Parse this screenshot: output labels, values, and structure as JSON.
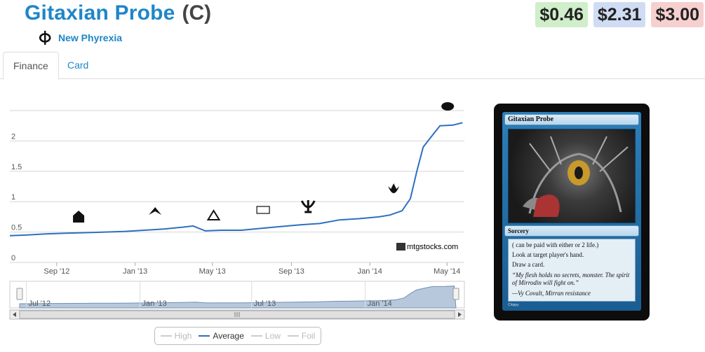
{
  "card": {
    "name": "Gitaxian Probe",
    "rarity": "(C)",
    "set_name": "New Phyrexia",
    "set_icon": "phyrexia-set-icon"
  },
  "prices": {
    "low": "$0.46",
    "avg": "$2.31",
    "high": "$3.00",
    "low_color": "#cfeec9",
    "avg_color": "#cfdcf4",
    "high_color": "#f6cfcf"
  },
  "tabs": [
    {
      "label": "Finance",
      "active": true
    },
    {
      "label": "Card",
      "active": false
    }
  ],
  "chart_data": {
    "type": "line",
    "ylim": [
      0,
      2.5
    ],
    "y_ticks": [
      "0",
      "0.5",
      "1",
      "1.5",
      "2"
    ],
    "x_ticks": [
      "Sep '12",
      "Jan '13",
      "May '13",
      "Sep '13",
      "Jan '14",
      "May '14"
    ],
    "navigator_ticks": [
      "Jul '12",
      "Jan '13",
      "Jul '13",
      "Jan '14"
    ],
    "series": [
      {
        "name": "Average",
        "color": "#2f6fbf",
        "x": [
          "2012-06-20",
          "2012-07-15",
          "2012-08-15",
          "2012-09-15",
          "2012-10-15",
          "2012-11-15",
          "2012-12-15",
          "2013-01-15",
          "2013-02-15",
          "2013-03-15",
          "2013-04-01",
          "2013-04-20",
          "2013-05-15",
          "2013-06-15",
          "2013-07-15",
          "2013-08-15",
          "2013-09-15",
          "2013-10-15",
          "2013-11-15",
          "2013-12-15",
          "2014-01-15",
          "2014-02-01",
          "2014-02-20",
          "2014-03-05",
          "2014-03-15",
          "2014-03-25",
          "2014-04-05",
          "2014-04-20",
          "2014-05-10",
          "2014-05-25"
        ],
        "values": [
          0.44,
          0.45,
          0.47,
          0.48,
          0.49,
          0.5,
          0.51,
          0.53,
          0.55,
          0.58,
          0.6,
          0.52,
          0.53,
          0.53,
          0.56,
          0.59,
          0.62,
          0.64,
          0.7,
          0.72,
          0.75,
          0.78,
          0.85,
          1.05,
          1.5,
          1.9,
          2.05,
          2.25,
          2.26,
          2.3
        ]
      }
    ],
    "set_release_markers": [
      {
        "x": "2012-10-05",
        "icon": "return-to-ravnica-icon"
      },
      {
        "x": "2013-02-01",
        "icon": "gatecrash-icon"
      },
      {
        "x": "2013-05-03",
        "icon": "dragons-maze-icon"
      },
      {
        "x": "2013-07-19",
        "icon": "m14-icon"
      },
      {
        "x": "2013-09-27",
        "icon": "theros-icon"
      },
      {
        "x": "2014-02-07",
        "icon": "born-of-the-gods-icon"
      },
      {
        "x": "2014-05-02",
        "icon": "journey-into-nyx-icon"
      }
    ],
    "watermark": "mtgstocks.com",
    "legend": [
      {
        "label": "High",
        "on": false
      },
      {
        "label": "Average",
        "on": true
      },
      {
        "label": "Low",
        "on": false
      },
      {
        "label": "Foil",
        "on": false
      }
    ]
  },
  "card_image": {
    "title": "Gitaxian Probe",
    "type_line": "Sorcery",
    "rules_1": "( can be paid with either  or 2 life.)",
    "rules_2": "Look at target player's hand.",
    "rules_3": "Draw a card.",
    "flavor_1": "“My flesh holds no secrets, monster. The spirit of Mirrodin will fight on.”",
    "flavor_2": "—Vy Covalt, Mirran resistance",
    "artist": "Chippy"
  }
}
